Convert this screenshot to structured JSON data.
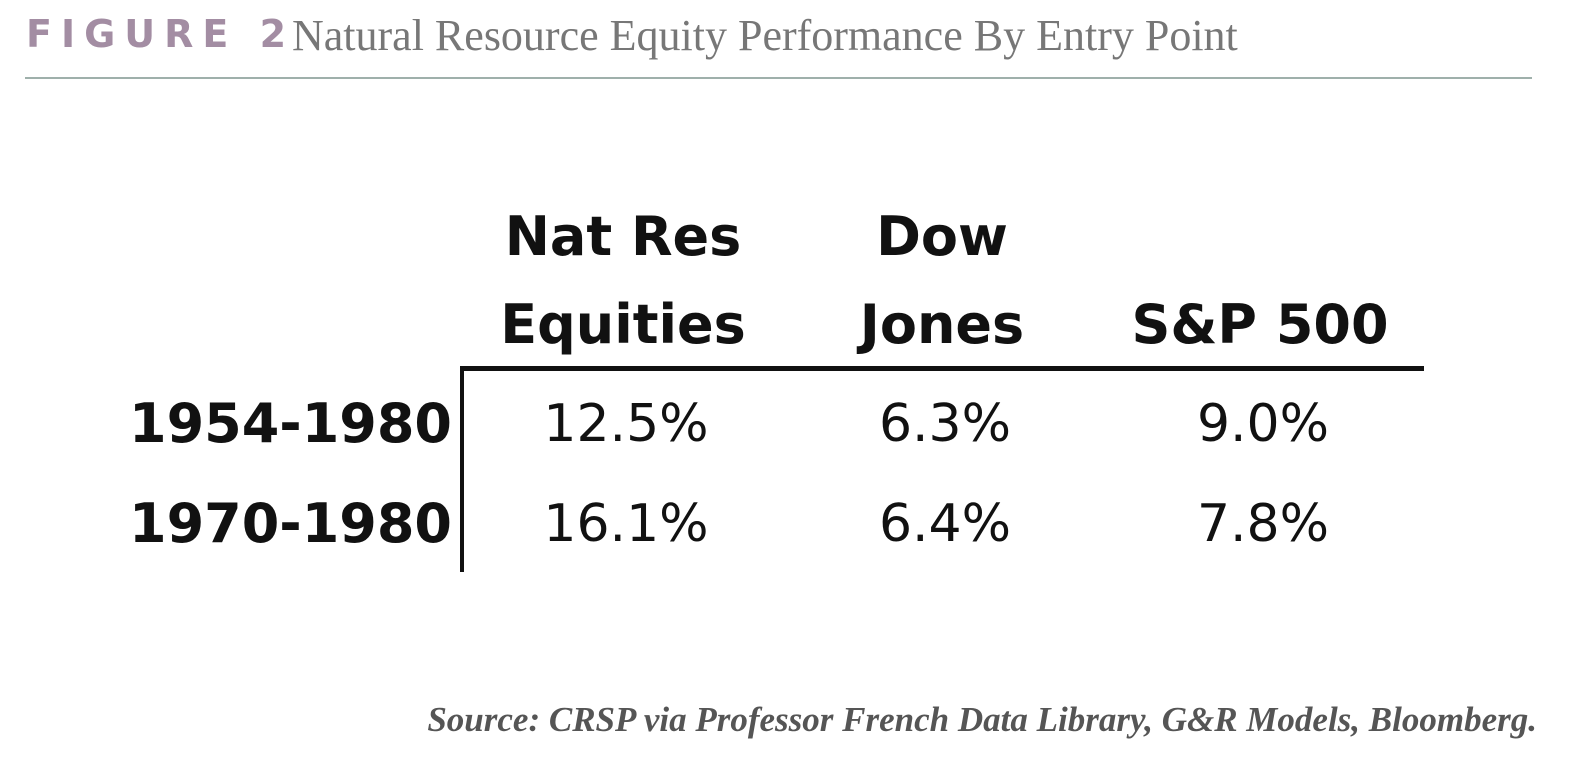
{
  "header": {
    "label": "FIGURE 2",
    "title": "Natural Resource Equity Performance By Entry Point"
  },
  "table": {
    "columns": [
      [
        "Nat Res",
        "Equities"
      ],
      [
        "Dow",
        "Jones"
      ],
      [
        "S&P 500"
      ]
    ],
    "rows": [
      {
        "label": "1954-1980",
        "cells": [
          "12.5%",
          "6.3%",
          "9.0%"
        ]
      },
      {
        "label": "1970-1980",
        "cells": [
          "16.1%",
          "6.4%",
          "7.8%"
        ]
      }
    ]
  },
  "source": "Source: CRSP via Professor French Data Library, G&R Models, Bloomberg."
}
